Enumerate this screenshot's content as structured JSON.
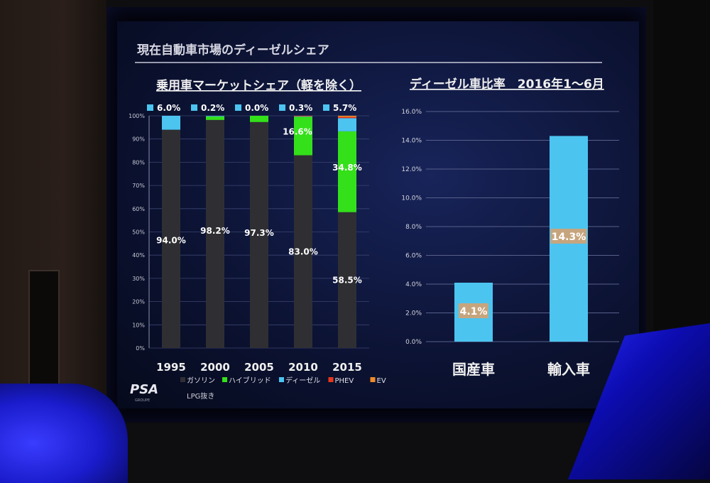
{
  "slide": {
    "title": "現在自動車市場のディーゼルシェア",
    "logo": "PSA",
    "logo_sub": "GROUPE",
    "footnote": "LPG抜き"
  },
  "colors": {
    "gasoline": "#2f2f33",
    "hybrid": "#34e01a",
    "diesel": "#4cc4f0",
    "phev": "#e8361c",
    "ev": "#f08a2a",
    "label_box": "#c6a57e"
  },
  "chart_data": [
    {
      "type": "bar",
      "stacked": true,
      "title": "乗用車マーケットシェア（軽を除く）",
      "categories": [
        "1995",
        "2000",
        "2005",
        "2010",
        "2015"
      ],
      "ylim": [
        0,
        100
      ],
      "yticks": [
        "0%",
        "10%",
        "20%",
        "30%",
        "40%",
        "50%",
        "60%",
        "70%",
        "80%",
        "90%",
        "100%"
      ],
      "series": [
        {
          "name": "ガソリン",
          "values": [
            94.0,
            98.2,
            97.3,
            83.0,
            58.5
          ]
        },
        {
          "name": "ハイブリッド",
          "values": [
            0,
            1.5,
            2.7,
            16.6,
            34.8
          ]
        },
        {
          "name": "ディーゼル",
          "values": [
            6.0,
            0.2,
            0.0,
            0.3,
            5.7
          ]
        },
        {
          "name": "PHEV",
          "values": [
            0,
            0,
            0,
            0.1,
            0.5
          ]
        },
        {
          "name": "EV",
          "values": [
            0,
            0,
            0,
            0,
            0.5
          ]
        }
      ],
      "value_labels": {
        "gasoline": [
          "94.0%",
          "98.2%",
          "97.3%",
          "83.0%",
          "58.5%"
        ],
        "hybrid": [
          "",
          "",
          "",
          "16.6%",
          "34.8%"
        ],
        "diesel_top": [
          "6.0%",
          "0.2%",
          "0.0%",
          "0.3%",
          "5.7%"
        ]
      },
      "legend_position": "bottom",
      "grid": true
    },
    {
      "type": "bar",
      "title": "ディーゼル車比率　2016年1～6月",
      "categories": [
        "国産車",
        "輸入車"
      ],
      "values": [
        4.1,
        14.3
      ],
      "value_labels": [
        "4.1%",
        "14.3%"
      ],
      "ylim": [
        0,
        16
      ],
      "yticks": [
        "0.0%",
        "2.0%",
        "4.0%",
        "6.0%",
        "8.0%",
        "10.0%",
        "12.0%",
        "14.0%",
        "16.0%"
      ],
      "grid": true
    }
  ]
}
